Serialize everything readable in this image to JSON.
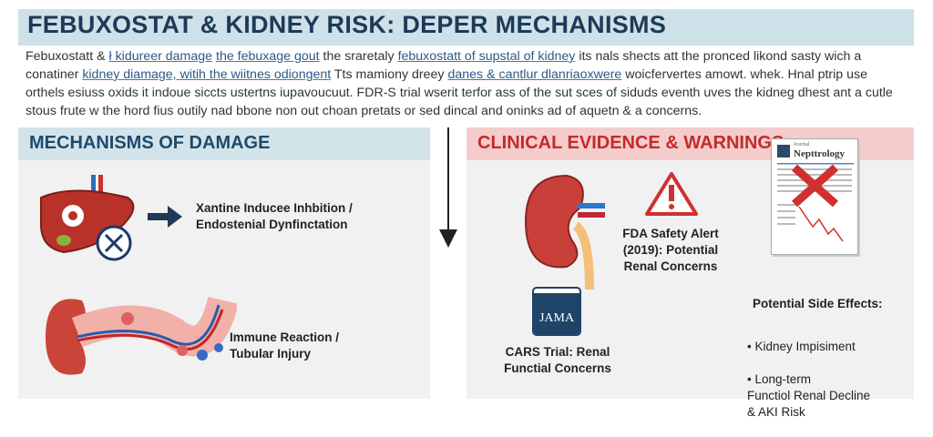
{
  "title": "FEBUXOSTAT & KIDNEY RISK: DEPER MECHANISMS",
  "paragraph": [
    [
      [
        "Febuxostatt & ",
        0
      ],
      [
        "ł kidureer damage",
        1
      ],
      [
        " ",
        0
      ],
      [
        "the febuxage gout",
        1
      ],
      [
        " the sraretaly ",
        0
      ],
      [
        "febuxostatt of supstal of kidney",
        1
      ],
      [
        " its nals shects att the pronced likond sasty wich a",
        0
      ]
    ],
    [
      [
        "conatiner ",
        0
      ],
      [
        "kidney diamage, witih the wiitnes odiongent",
        1
      ],
      [
        " Tts mamiony dreey ",
        0
      ],
      [
        "danes & cantlur dlanriaoxwere",
        1
      ],
      [
        " woicfervertes amowt. whek. Hnal ptrip use",
        0
      ]
    ],
    [
      [
        "orthels esiuss oxids it indoue siccts ustertns iupavoucuut. FDR-S trial wserit terfor ass of the sut sces of siduds eventh uves the kidneg dhest ant a cutle",
        0
      ]
    ],
    [
      [
        "stous frute w the hord fius outily nad bbone non out choan pretats or sed dincal and oninks ad of aquetn & a concerns.",
        0
      ]
    ]
  ],
  "left": {
    "header": "MECHANISMS OF DAMAGE",
    "item1": "Xantine Inducee Inhbition /\nEndostenial Dynfinctation",
    "item2": "Immune Reaction /\nTubular Injury"
  },
  "right": {
    "header": "CLINICAL EVIDENCE & WARNINGS",
    "fda": "FDA Safety Alert\n(2019): Potential\nRenal Concerns",
    "jama_logo": "JAMA",
    "cars": "CARS Trial: Renal\nFunctial Concerns",
    "journal_small": "Journal",
    "journal_name": "Nepttrology",
    "side_title": "Potential Side Effects:",
    "side_effects": [
      "Kidney Impisiment",
      "Long-term\nFunctiol  Renal Decline\n& AKI Risk"
    ]
  },
  "colors": {
    "navy": "#1d3a58",
    "red": "#c62a2a"
  }
}
